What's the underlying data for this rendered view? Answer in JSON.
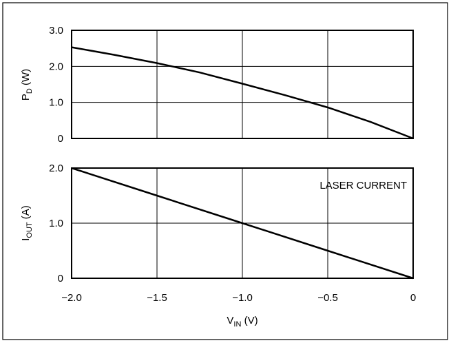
{
  "chart_data": [
    {
      "type": "line",
      "ylabel": {
        "main": "P",
        "sub": "D",
        "unit": " (W)"
      },
      "xlim": [
        -2.0,
        0
      ],
      "ylim": [
        0,
        3.0
      ],
      "yticks": [
        "0",
        "1.0",
        "2.0",
        "3.0"
      ],
      "grid": true,
      "series": [
        {
          "x": [
            -2.0,
            -1.75,
            -1.5,
            -1.25,
            -1.0,
            -0.75,
            -0.5,
            -0.25,
            0
          ],
          "y": [
            2.53,
            2.32,
            2.09,
            1.83,
            1.52,
            1.2,
            0.86,
            0.46,
            0
          ]
        }
      ]
    },
    {
      "type": "line",
      "ylabel": {
        "main": "I",
        "sub": "OUT",
        "unit": " (A)"
      },
      "xlabel": {
        "main": "V",
        "sub": "IN",
        "unit": " (V)"
      },
      "xlim": [
        -2.0,
        0
      ],
      "ylim": [
        0,
        2.0
      ],
      "yticks": [
        "0",
        "1.0",
        "2.0"
      ],
      "xticks": [
        "−2.0",
        "−1.5",
        "−1.0",
        "−0.5",
        "0"
      ],
      "grid": true,
      "annotation": "LASER CURRENT",
      "series": [
        {
          "x": [
            -2.0,
            -1.5,
            -1.0,
            -0.5,
            0
          ],
          "y": [
            2.0,
            1.5,
            1.0,
            0.5,
            0
          ]
        }
      ]
    }
  ]
}
